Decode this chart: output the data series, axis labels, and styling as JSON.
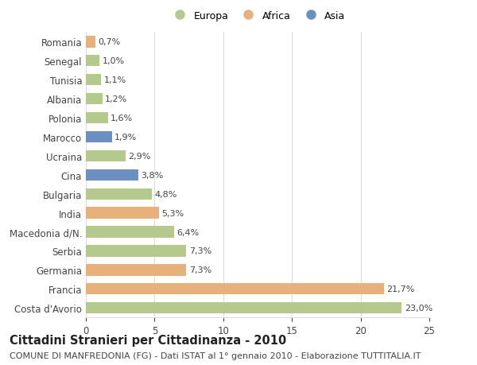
{
  "categories": [
    "Romania",
    "Senegal",
    "Tunisia",
    "Albania",
    "Polonia",
    "Marocco",
    "Ucraina",
    "Cina",
    "Bulgaria",
    "India",
    "Macedonia d/N.",
    "Serbia",
    "Germania",
    "Francia",
    "Costa d'Avorio"
  ],
  "values": [
    23.0,
    21.7,
    7.3,
    7.3,
    6.4,
    5.3,
    4.8,
    3.8,
    2.9,
    1.9,
    1.6,
    1.2,
    1.1,
    1.0,
    0.7
  ],
  "continent": [
    "Europa",
    "Africa",
    "Africa",
    "Europa",
    "Europa",
    "Africa",
    "Europa",
    "Asia",
    "Europa",
    "Asia",
    "Europa",
    "Europa",
    "Europa",
    "Europa",
    "Africa"
  ],
  "bar_colors": [
    "#b5c98e",
    "#e8b07a",
    "#e8b07a",
    "#b5c98e",
    "#b5c98e",
    "#e8b07a",
    "#b5c98e",
    "#6b8fc0",
    "#b5c98e",
    "#6b8fc0",
    "#b5c98e",
    "#b5c98e",
    "#b5c98e",
    "#b5c98e",
    "#e8b07a"
  ],
  "labels": [
    "23,0%",
    "21,7%",
    "7,3%",
    "7,3%",
    "6,4%",
    "5,3%",
    "4,8%",
    "3,8%",
    "2,9%",
    "1,9%",
    "1,6%",
    "1,2%",
    "1,1%",
    "1,0%",
    "0,7%"
  ],
  "xlim": [
    0,
    25
  ],
  "xticks": [
    0,
    5,
    10,
    15,
    20,
    25
  ],
  "title": "Cittadini Stranieri per Cittadinanza - 2010",
  "subtitle": "COMUNE DI MANFREDONIA (FG) - Dati ISTAT al 1° gennaio 2010 - Elaborazione TUTTITALIA.IT",
  "legend_labels": [
    "Europa",
    "Africa",
    "Asia"
  ],
  "legend_colors": [
    "#b5c98e",
    "#e8b07a",
    "#6b8fc0"
  ],
  "background_color": "#ffffff",
  "grid_color": "#dddddd",
  "bar_height": 0.6,
  "title_fontsize": 10.5,
  "subtitle_fontsize": 8,
  "tick_fontsize": 8.5,
  "label_fontsize": 8
}
